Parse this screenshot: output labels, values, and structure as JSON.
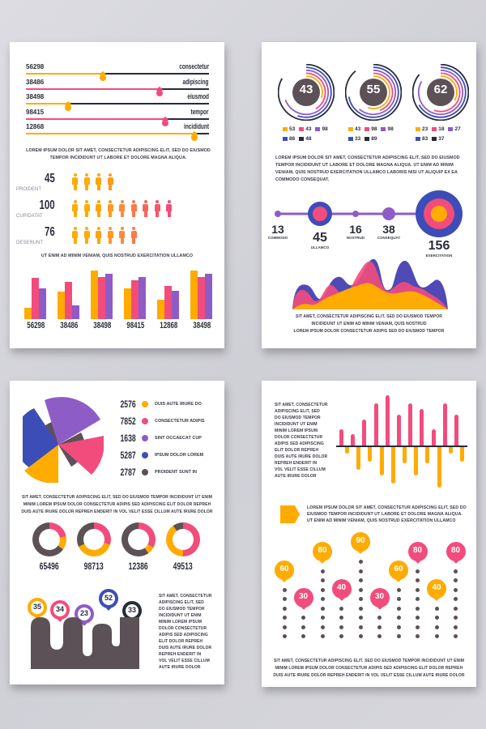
{
  "colors": {
    "orange": "#FFAB00",
    "pink": "#F24C7C",
    "purple": "#8E5CC6",
    "blue": "#3D4DB7",
    "dark": "#5B5156",
    "navy": "#252B3A"
  },
  "page1": {
    "progress_rows": [
      {
        "value": "56298",
        "label": "consectetur",
        "percent": 42,
        "color": "orange"
      },
      {
        "value": "38486",
        "label": "adipiscing",
        "percent": 73,
        "color": "pink"
      },
      {
        "value": "38498",
        "label": "eiusmod",
        "percent": 23,
        "color": "orange"
      },
      {
        "value": "98415",
        "label": "tempor",
        "percent": 76,
        "color": "pink"
      },
      {
        "value": "12868",
        "label": "incididunt",
        "percent": 92,
        "color": "orange"
      }
    ],
    "paragraph_1": "LOREM IPSUM DOLOR SIT AMET, CONSECTETUR ADIPISCING ELIT, SED DO EIUSMOD TEMPOR INCIDIDUNT UT LABORE ET DOLORE MAGNA ALIQUA.",
    "people_rows": [
      {
        "value": "45",
        "label": "PROIDENT",
        "count": 4
      },
      {
        "value": "100",
        "label": "CUPIDATAT",
        "count": 9
      },
      {
        "value": "76",
        "label": "DESERUNT",
        "count": 6
      }
    ],
    "caption_2": "UT ENIM AD MINIM VENIAM, QUIS NOSTRUD EXERCITATION ULLAMCO",
    "bar_groups": [
      {
        "label": "56298",
        "values": [
          18,
          64,
          48
        ]
      },
      {
        "label": "38486",
        "values": [
          42,
          57,
          21
        ]
      },
      {
        "label": "38498",
        "values": [
          75,
          65,
          70
        ]
      },
      {
        "label": "98415",
        "values": [
          48,
          60,
          65
        ]
      },
      {
        "label": "12868",
        "values": [
          30,
          51,
          44
        ]
      },
      {
        "label": "38498",
        "values": [
          75,
          65,
          70
        ]
      }
    ]
  },
  "page2": {
    "radial_gauges": [
      {
        "value": "43",
        "legend": [
          {
            "color": "orange",
            "v": "53"
          },
          {
            "color": "pink",
            "v": "43"
          },
          {
            "color": "purple",
            "v": "98"
          },
          {
            "color": "blue",
            "v": "86"
          },
          {
            "color": "navy",
            "v": "48"
          }
        ]
      },
      {
        "value": "55",
        "legend": [
          {
            "color": "orange",
            "v": "43"
          },
          {
            "color": "pink",
            "v": "98"
          },
          {
            "color": "purple",
            "v": "98"
          },
          {
            "color": "blue",
            "v": "33"
          },
          {
            "color": "navy",
            "v": "89"
          }
        ]
      },
      {
        "value": "62",
        "legend": [
          {
            "color": "orange",
            "v": "23"
          },
          {
            "color": "pink",
            "v": "18"
          },
          {
            "color": "purple",
            "v": "27"
          },
          {
            "color": "blue",
            "v": "83"
          },
          {
            "color": "navy",
            "v": "37"
          }
        ]
      }
    ],
    "paragraph_1": "LOREM IPSUM DOLOR SIT AMET, CONSECTETUR ADIPISCING ELIT, SED DO EIUSMOD TEMPOR INCIDIDUNT UT LABORE ET DOLORE MAGNA ALIQUA. UT ENIM AD MINIM VENIAM, QUIS NOSTRUD EXERCITATION ULLAMCO LABORIS NISI UT ALIQUIP EX EA COMMODO CONSEQUAT.",
    "timeline": [
      {
        "value": "13",
        "label": "COMMODO"
      },
      {
        "value": "45",
        "label": "ULLAMCO"
      },
      {
        "value": "16",
        "label": "NOSTRUD"
      },
      {
        "value": "38",
        "label": "CONSEQUAT"
      },
      {
        "value": "156",
        "label": "EXERCITATION"
      }
    ],
    "caption_lines": [
      "SIT AMET, CONSECTETUR ADIPISCING ELIT,  SED DO EIUSMOD TEMPOR",
      "INCIDIDUNT UT ENIM AD MINIM VENIAM, QUIS NOSTRUD",
      "LOREM IPSUM DOLOR  CONSECTETUR ADIPIS SED DO EIUSMOD TEMPOR"
    ]
  },
  "page3": {
    "pie_legend": [
      {
        "value": "2576",
        "label": "DUIS AUTE IRURE DO",
        "color": "orange"
      },
      {
        "value": "7852",
        "label": "CONSECTETUR ADIPIS",
        "color": "pink"
      },
      {
        "value": "1638",
        "label": "SINT OCCAECAT CUP",
        "color": "purple"
      },
      {
        "value": "5287",
        "label": "IPSUM DOLOR LOREM",
        "color": "blue"
      },
      {
        "value": "2787",
        "label": "PROIDENT SUNT IN",
        "color": "dark"
      }
    ],
    "caption_lines": [
      "SIT AMET, CONSECTETUR ADIPISCING ELIT,  SED DO EIUSMOD TEMPOR INCIDIDUNT UT ENIM",
      "MINIM LOREM IPSUM DOLOR  CONSECTETUR ADIPIS SED ADIPISCING ELIT DOLOR REPREH",
      "DUIS AUTE IRURE DOLOR REPREH ENDERIT IN VOL VELIT ESSE CILLUM AUTE IRURE DOLOR"
    ],
    "donuts": [
      {
        "value": "65496",
        "pink": 22,
        "orange": 13
      },
      {
        "value": "98713",
        "pink": 30,
        "orange": 38
      },
      {
        "value": "12386",
        "pink": 33,
        "orange": 7
      },
      {
        "value": "49513",
        "pink": 50,
        "orange": 40
      }
    ],
    "pins": [
      {
        "value": "35",
        "color": "orange"
      },
      {
        "value": "34",
        "color": "pink"
      },
      {
        "value": "23",
        "color": "purple"
      },
      {
        "value": "52",
        "color": "blue"
      },
      {
        "value": "33",
        "color": "navy"
      }
    ],
    "side_text": [
      "SIT AMET, CONSECTETUR",
      "ADIPISCING ELIT,  SED",
      "DO EIUSMOD TEMPOR",
      "INCIDIDUNT UT ENIM",
      "MINIM LOREM IPSUM",
      "DOLOR CONSECTETUR",
      "ADIPIS SED ADIPISCING",
      "ELIT DOLOR REPREH",
      "DUIS AUTE IRURE DOLOR",
      "REPREH ENDERIT IN",
      "VOL VELIT ESSE CILLUM",
      "AUTE IRURE DOLOR"
    ]
  },
  "page4": {
    "side_text": [
      "SIT AMET, CONSECTETUR",
      "ADIPISCING ELIT,  SED",
      "DO EIUSMOD TEMPOR",
      "INCIDIDUNT UT ENIM",
      "MINIM LOREM IPSUM",
      "DOLOR CONSECTETUR",
      "ADIPIS SED ADIPISCING",
      "ELIT DOLOR REPREH",
      "DUIS AUTE IRURE DOLOR",
      "REPREH ENDERIT IN",
      "VOL VELIT ESSE CILLUM",
      "AUTE IRURE DOLOR"
    ],
    "wave_bars": {
      "up": [
        20,
        14,
        32,
        52,
        62,
        38,
        52,
        45,
        20,
        52,
        38
      ],
      "down": [
        8,
        28,
        18,
        35,
        45,
        20,
        35,
        20,
        50,
        8,
        18
      ]
    },
    "paragraph_1": "LOREM IPSUM DOLOR SIT AMET, CONSECTETUR ADIPISCING ELIT, SED DO EIUSMOD TEMPOR INCIDIDUNT UT LABORE ET DOLORE MAGNA ALIQUA. UT ENIM AD MINIM VENIAM, QUIS NOSTRUD EXERCITATION ULLAMCO",
    "pins": [
      {
        "value": "60",
        "color": "orange",
        "dots": 6
      },
      {
        "value": "30",
        "color": "pink",
        "dots": 3
      },
      {
        "value": "80",
        "color": "orange",
        "dots": 8
      },
      {
        "value": "40",
        "color": "pink",
        "dots": 4
      },
      {
        "value": "90",
        "color": "orange",
        "dots": 9
      },
      {
        "value": "30",
        "color": "pink",
        "dots": 3
      },
      {
        "value": "60",
        "color": "orange",
        "dots": 6
      },
      {
        "value": "80",
        "color": "pink",
        "dots": 8
      },
      {
        "value": "40",
        "color": "orange",
        "dots": 4
      },
      {
        "value": "80",
        "color": "pink",
        "dots": 8
      }
    ],
    "caption_lines": [
      "SIT AMET, CONSECTETUR ADIPISCING ELIT,  SED DO EIUSMOD TEMPOR INCIDIDUNT UT ENIM",
      "MINIM LOREM IPSUM DOLOR  CONSECTETUR ADIPIS SED ADIPISCING ELIT DOLOR REPREH",
      "DUIS AUTE IRURE DOLOR REPREH ENDERIT IN VOL VELIT ESSE CILLUM AUTE IRURE DOLOR"
    ]
  }
}
